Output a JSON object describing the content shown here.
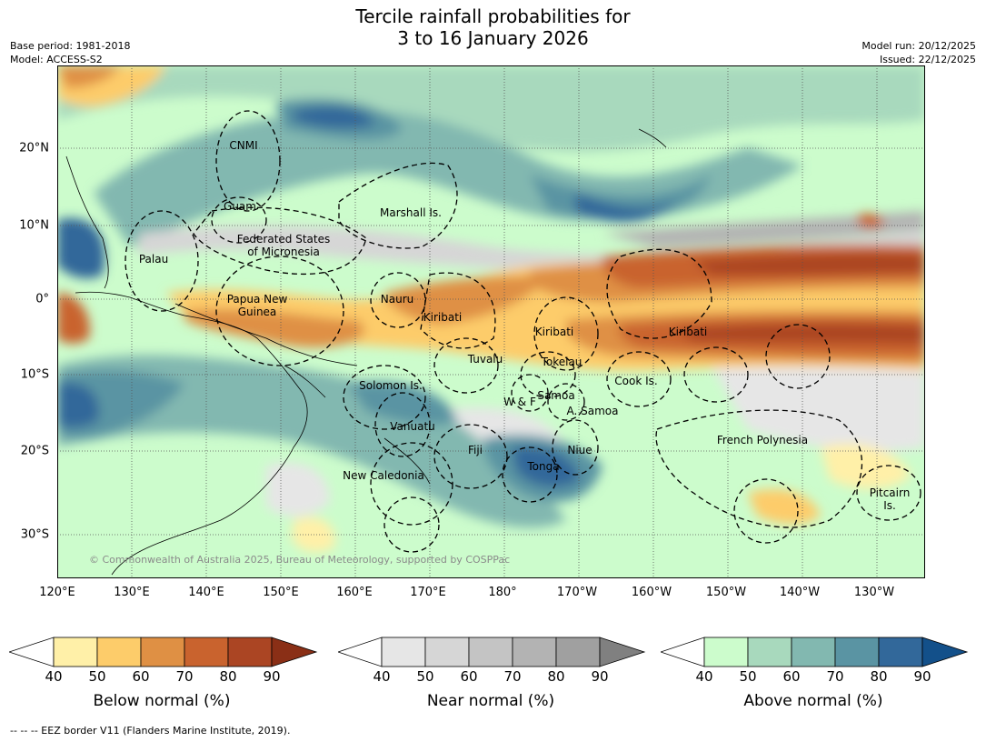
{
  "title_line1": "Tercile rainfall probabilities for",
  "title_line2": "3 to 16 January 2026",
  "meta_left": [
    "Base period: 1981-2018",
    "Model: ACCESS-S2"
  ],
  "meta_right": [
    "Model run: 20/12/2025",
    "Issued: 22/12/2025"
  ],
  "lon_labels": [
    "120°E",
    "130°E",
    "140°E",
    "150°E",
    "160°E",
    "170°E",
    "180°",
    "170°W",
    "160°W",
    "150°W",
    "140°W",
    "130°W"
  ],
  "lat_labels": [
    "20°N",
    "10°N",
    "0°",
    "10°S",
    "20°S",
    "30°S"
  ],
  "places": {
    "cnmi": "CNMI",
    "guam": "Guam",
    "marshall": "Marshall Is.",
    "fsm1": "Federated States",
    "fsm2": "of Micronesia",
    "palau": "Palau",
    "png1": "Papua New",
    "png2": "Guinea",
    "nauru": "Nauru",
    "kiribati_w": "Kiribati",
    "kiribati_c": "Kiribati",
    "kiribati_e": "Kiribati",
    "tuvalu": "Tuvalu",
    "tokelau": "Tokelau",
    "cook": "Cook Is.",
    "solomon": "Solomon Is.",
    "wf": "W & F",
    "samoa": "Samoa",
    "asamoa": "A. Samoa",
    "vanuatu": "Vanuatu",
    "fiji": "Fiji",
    "niue": "Niue",
    "tonga": "Tonga",
    "newcal": "New Caledonia",
    "frpoly": "French Polynesia",
    "pitcairn1": "Pitcairn",
    "pitcairn2": "Is."
  },
  "copyright": "© Commonwealth of Australia 2025, Bureau of Meteorology, supported by COSPPac",
  "colorbars": [
    {
      "label": "Below normal (%)",
      "ticks": [
        "40",
        "50",
        "60",
        "70",
        "80",
        "90"
      ],
      "colors": [
        "#ffffff",
        "#fff0a8",
        "#fdcc6a",
        "#df9044",
        "#c9632e",
        "#ab4523",
        "#8a2f16"
      ]
    },
    {
      "label": "Near normal (%)",
      "ticks": [
        "40",
        "50",
        "60",
        "70",
        "80",
        "90"
      ],
      "colors": [
        "#ffffff",
        "#e6e6e6",
        "#d6d6d6",
        "#c4c4c4",
        "#b3b3b3",
        "#a0a0a0",
        "#808080"
      ]
    },
    {
      "label": "Above normal (%)",
      "ticks": [
        "40",
        "50",
        "60",
        "70",
        "80",
        "90"
      ],
      "colors": [
        "#ffffff",
        "#ccfccc",
        "#a8d9bd",
        "#82b8b0",
        "#5a94a3",
        "#32689a",
        "#13508a"
      ]
    }
  ],
  "eez_note": "--  --  -- EEZ border V11 (Flanders Marine Institute, 2019)."
}
